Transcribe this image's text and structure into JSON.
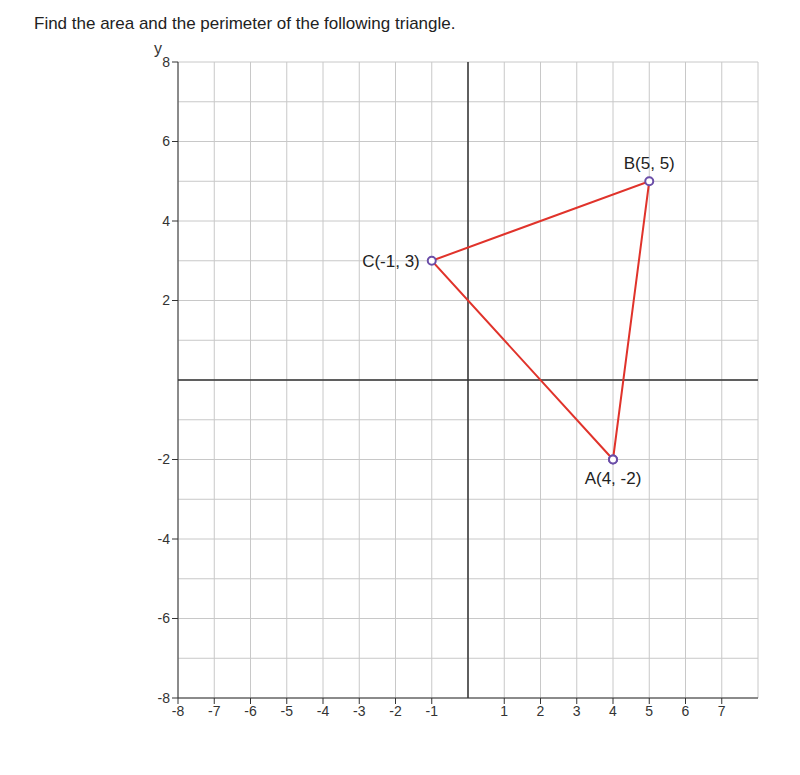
{
  "chart_data": {
    "type": "line",
    "title": "Find the area and the perimeter of the following triangle.",
    "ylabel": "y",
    "x": [
      4,
      5,
      -1,
      4
    ],
    "values": [
      -2,
      5,
      3,
      -2
    ],
    "color": "#e0332b",
    "marker": "circle",
    "xlim": [
      -8,
      8
    ],
    "ylim": [
      -8,
      8
    ],
    "xticks": [
      -8,
      -7,
      -6,
      -5,
      -4,
      -3,
      -2,
      -1,
      1,
      2,
      3,
      4,
      5,
      6,
      7
    ],
    "yticks": [
      -8,
      -6,
      -4,
      -2,
      2,
      4,
      6,
      8
    ],
    "grid": true,
    "annotations": [
      {
        "text": "A(4, -2)",
        "x": 4,
        "y": -2
      },
      {
        "text": "B(5, 5)",
        "x": 5,
        "y": 5
      },
      {
        "text": "C(-1, 3)",
        "x": -1,
        "y": 3
      }
    ]
  }
}
